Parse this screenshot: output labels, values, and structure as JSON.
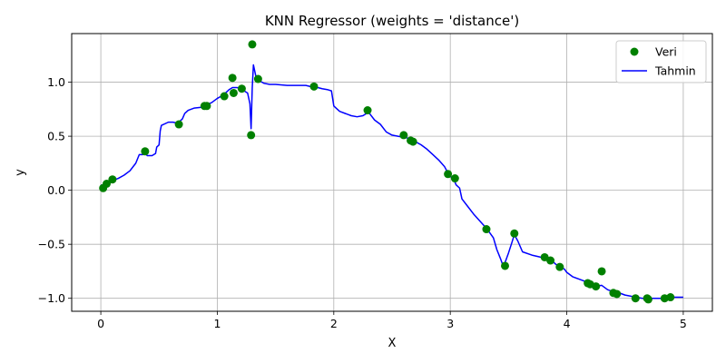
{
  "chart_data": {
    "type": "scatter",
    "title": "KNN Regressor (weights = 'distance')",
    "xlabel": "X",
    "ylabel": "y",
    "xlim": [
      -0.25,
      5.25
    ],
    "ylim": [
      -1.12,
      1.45
    ],
    "xticks": [
      0,
      1,
      2,
      3,
      4,
      5
    ],
    "yticks": [
      -1.0,
      -0.5,
      0.0,
      0.5,
      1.0
    ],
    "xtick_labels": [
      "0",
      "1",
      "2",
      "3",
      "4",
      "5"
    ],
    "ytick_labels": [
      "−1.0",
      "−0.5",
      "0.0",
      "0.5",
      "1.0"
    ],
    "grid": true,
    "legend_position": "top-right",
    "series": [
      {
        "name": "Veri",
        "type": "scatter",
        "color": "#008000",
        "x": [
          0.02,
          0.05,
          0.1,
          0.38,
          0.67,
          0.89,
          0.91,
          1.06,
          1.13,
          1.14,
          1.21,
          1.29,
          1.3,
          1.35,
          1.83,
          2.29,
          2.6,
          2.66,
          2.68,
          2.98,
          3.04,
          3.31,
          3.47,
          3.55,
          3.81,
          3.86,
          3.94,
          4.18,
          4.2,
          4.25,
          4.3,
          4.4,
          4.43,
          4.59,
          4.69,
          4.7,
          4.84,
          4.89
        ],
        "y": [
          0.02,
          0.06,
          0.1,
          0.36,
          0.61,
          0.78,
          0.78,
          0.87,
          1.04,
          0.9,
          0.94,
          0.51,
          1.35,
          1.03,
          0.96,
          0.74,
          0.51,
          0.46,
          0.45,
          0.15,
          0.11,
          -0.36,
          -0.7,
          -0.4,
          -0.62,
          -0.65,
          -0.71,
          -0.86,
          -0.87,
          -0.89,
          -0.75,
          -0.95,
          -0.96,
          -1.0,
          -1.0,
          -1.01,
          -1.0,
          -0.99
        ]
      },
      {
        "name": "Tahmin",
        "type": "line",
        "color": "#0000ff",
        "x": [
          0.0,
          0.02,
          0.05,
          0.08,
          0.1,
          0.15,
          0.2,
          0.25,
          0.3,
          0.33,
          0.36,
          0.38,
          0.4,
          0.44,
          0.47,
          0.48,
          0.5,
          0.51,
          0.52,
          0.58,
          0.62,
          0.66,
          0.7,
          0.72,
          0.75,
          0.8,
          0.88,
          0.9,
          0.95,
          1.0,
          1.05,
          1.08,
          1.1,
          1.13,
          1.17,
          1.2,
          1.23,
          1.26,
          1.28,
          1.29,
          1.3,
          1.31,
          1.33,
          1.35,
          1.4,
          1.45,
          1.5,
          1.6,
          1.7,
          1.76,
          1.8,
          1.83,
          1.9,
          1.95,
          1.98,
          2.0,
          2.05,
          2.1,
          2.15,
          2.2,
          2.25,
          2.28,
          2.3,
          2.35,
          2.4,
          2.45,
          2.5,
          2.55,
          2.6,
          2.65,
          2.7,
          2.75,
          2.8,
          2.85,
          2.9,
          2.95,
          2.98,
          3.0,
          3.03,
          3.05,
          3.08,
          3.1,
          3.15,
          3.2,
          3.25,
          3.3,
          3.33,
          3.37,
          3.4,
          3.43,
          3.45,
          3.47,
          3.5,
          3.53,
          3.55,
          3.58,
          3.62,
          3.7,
          3.78,
          3.81,
          3.86,
          3.9,
          3.94,
          3.98,
          4.0,
          4.05,
          4.1,
          4.15,
          4.18,
          4.2,
          4.25,
          4.3,
          4.35,
          4.4,
          4.45,
          4.5,
          4.55,
          4.59,
          4.65,
          4.7,
          4.75,
          4.8,
          4.84,
          4.89,
          4.95,
          5.0
        ],
        "y": [
          0.05,
          0.04,
          0.06,
          0.08,
          0.09,
          0.11,
          0.14,
          0.18,
          0.25,
          0.33,
          0.33,
          0.34,
          0.32,
          0.32,
          0.34,
          0.4,
          0.42,
          0.55,
          0.6,
          0.63,
          0.63,
          0.62,
          0.66,
          0.71,
          0.74,
          0.76,
          0.77,
          0.79,
          0.81,
          0.85,
          0.88,
          0.91,
          0.93,
          0.95,
          0.95,
          0.94,
          0.92,
          0.9,
          0.8,
          0.57,
          0.95,
          1.16,
          1.06,
          1.02,
          0.99,
          0.98,
          0.98,
          0.97,
          0.97,
          0.97,
          0.96,
          0.96,
          0.94,
          0.93,
          0.92,
          0.78,
          0.73,
          0.71,
          0.69,
          0.68,
          0.69,
          0.71,
          0.72,
          0.65,
          0.61,
          0.54,
          0.51,
          0.5,
          0.49,
          0.48,
          0.45,
          0.42,
          0.38,
          0.33,
          0.28,
          0.22,
          0.16,
          0.13,
          0.1,
          0.05,
          0.02,
          -0.08,
          -0.15,
          -0.22,
          -0.28,
          -0.34,
          -0.38,
          -0.44,
          -0.55,
          -0.63,
          -0.69,
          -0.67,
          -0.58,
          -0.48,
          -0.41,
          -0.47,
          -0.57,
          -0.6,
          -0.62,
          -0.62,
          -0.64,
          -0.68,
          -0.71,
          -0.73,
          -0.76,
          -0.8,
          -0.82,
          -0.84,
          -0.86,
          -0.87,
          -0.89,
          -0.88,
          -0.92,
          -0.94,
          -0.95,
          -0.97,
          -0.98,
          -0.99,
          -1.0,
          -1.0,
          -1.0,
          -1.0,
          -1.0,
          -0.99,
          -0.99,
          -0.99
        ]
      }
    ]
  }
}
